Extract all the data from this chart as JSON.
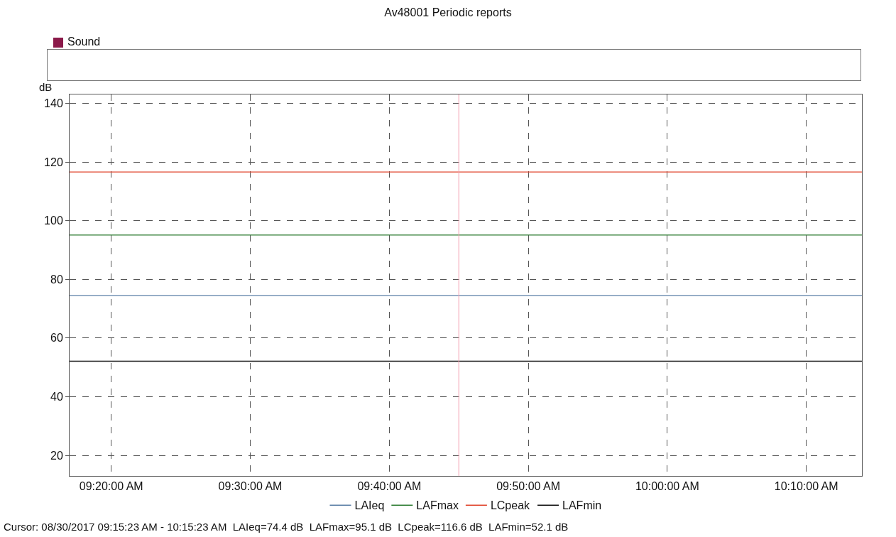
{
  "chart_data": {
    "type": "line",
    "title": "Av48001 Periodic reports",
    "ylabel": "dB",
    "x": [
      "2017-08-30T09:17",
      "2017-08-30T10:14"
    ],
    "series": [
      {
        "name": "LAIeq",
        "color": "#5b7fa6",
        "values": [
          74.4,
          74.4
        ]
      },
      {
        "name": "LAFmax",
        "color": "#2e7d32",
        "values": [
          95.1,
          95.1
        ]
      },
      {
        "name": "LCpeak",
        "color": "#e0442c",
        "values": [
          116.6,
          116.6
        ]
      },
      {
        "name": "LAFmin",
        "color": "#111111",
        "values": [
          52.1,
          52.1
        ]
      }
    ],
    "xlim": [
      "2017-08-30T09:17",
      "2017-08-30T10:14"
    ],
    "xticks": [
      {
        "value": "2017-08-30T09:20",
        "label": "09:20:00 AM"
      },
      {
        "value": "2017-08-30T09:30",
        "label": "09:30:00 AM"
      },
      {
        "value": "2017-08-30T09:40",
        "label": "09:40:00 AM"
      },
      {
        "value": "2017-08-30T09:50",
        "label": "09:50:00 AM"
      },
      {
        "value": "2017-08-30T10:00",
        "label": "10:00:00 AM"
      },
      {
        "value": "2017-08-30T10:10",
        "label": "10:10:00 AM"
      }
    ],
    "ylim": [
      13,
      143
    ],
    "yticks": [
      20,
      40,
      60,
      80,
      100,
      120,
      140
    ],
    "ref_lines": [
      {
        "axis": "x",
        "value": "2017-08-30T09:45",
        "color": "#f4a0b0"
      }
    ],
    "annotations": [
      "Sound",
      "Cursor: 08/30/2017 09:15:23 AM - 10:15:23 AM  LAIeq=74.4 dB  LAFmax=95.1 dB  LCpeak=116.6 dB  LAFmin=52.1 dB"
    ],
    "grid": true,
    "legend": "bottom",
    "marker": "none",
    "line_style": "solid"
  }
}
